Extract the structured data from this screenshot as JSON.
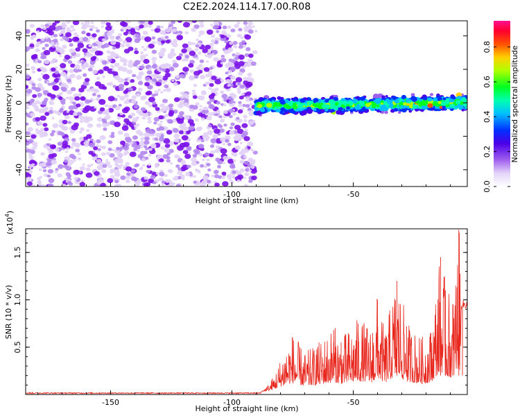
{
  "chart_data": [
    {
      "type": "heatmap",
      "title": "C2E2.2024.114.17.00.R08",
      "xlabel": "Height of straight line (km)",
      "ylabel": "Frequency (Hz)",
      "xlim": [
        -185,
        -3
      ],
      "ylim": [
        -50,
        49
      ],
      "xticks": [
        -150,
        -100,
        -50
      ],
      "yticks": [
        40,
        20,
        0,
        -20,
        -40
      ],
      "colorbar": {
        "label": "Normalized spectral amplitude",
        "range": [
          0,
          0.95
        ],
        "ticks": [
          "0.0",
          "0.2",
          "0.4",
          "0.6",
          "0.8"
        ],
        "colors": [
          "#ffffff",
          "#c8a8f0",
          "#7a10e8",
          "#3a00e0",
          "#0050ff",
          "#00e0ff",
          "#00ff80",
          "#60ff00",
          "#ffff00",
          "#ff8000",
          "#ff2000",
          "#ff1080"
        ]
      },
      "regions": [
        {
          "name": "scattered noise",
          "x_range": [
            -185,
            -90
          ],
          "freq_range": [
            -50,
            49
          ],
          "amplitude": 0.1
        },
        {
          "name": "signal band",
          "x_range": [
            -90,
            -3
          ],
          "center_freq_start": -2,
          "center_freq_end": 0,
          "bandwidth": 10,
          "amplitude": 0.4,
          "peak_amplitude": 0.9
        }
      ]
    },
    {
      "type": "line",
      "xlabel": "Height of straight line (km)",
      "ylabel": "SNR (10 * v/v)",
      "y_multiplier": "(x10",
      "y_multiplier_exp": "4",
      "xlim": [
        -185,
        -3
      ],
      "ylim": [
        0,
        1.75
      ],
      "xticks": [
        -150,
        -100,
        -50
      ],
      "yticks": [
        "0.5",
        "1.0",
        "1.5"
      ],
      "color": "#e8281e",
      "series": [
        {
          "values_description": "baseline",
          "x": [
            -185,
            -90
          ],
          "y_approx": 0.015
        },
        {
          "peaks": [
            [
              -85,
              0.25
            ],
            [
              -75,
              0.6
            ],
            [
              -70,
              0.4
            ],
            [
              -65,
              0.48
            ],
            [
              -58,
              0.68
            ],
            [
              -55,
              0.55
            ],
            [
              -48,
              0.75
            ],
            [
              -42,
              0.65
            ],
            [
              -40,
              1.0
            ],
            [
              -37,
              0.6
            ],
            [
              -32,
              1.2
            ],
            [
              -28,
              0.72
            ],
            [
              -22,
              0.55
            ],
            [
              -18,
              0.65
            ],
            [
              -14,
              1.45
            ],
            [
              -12,
              1.1
            ],
            [
              -9,
              0.95
            ],
            [
              -6.5,
              1.74
            ],
            [
              -5,
              0.9
            ],
            [
              -3,
              0.95
            ]
          ]
        }
      ]
    }
  ]
}
